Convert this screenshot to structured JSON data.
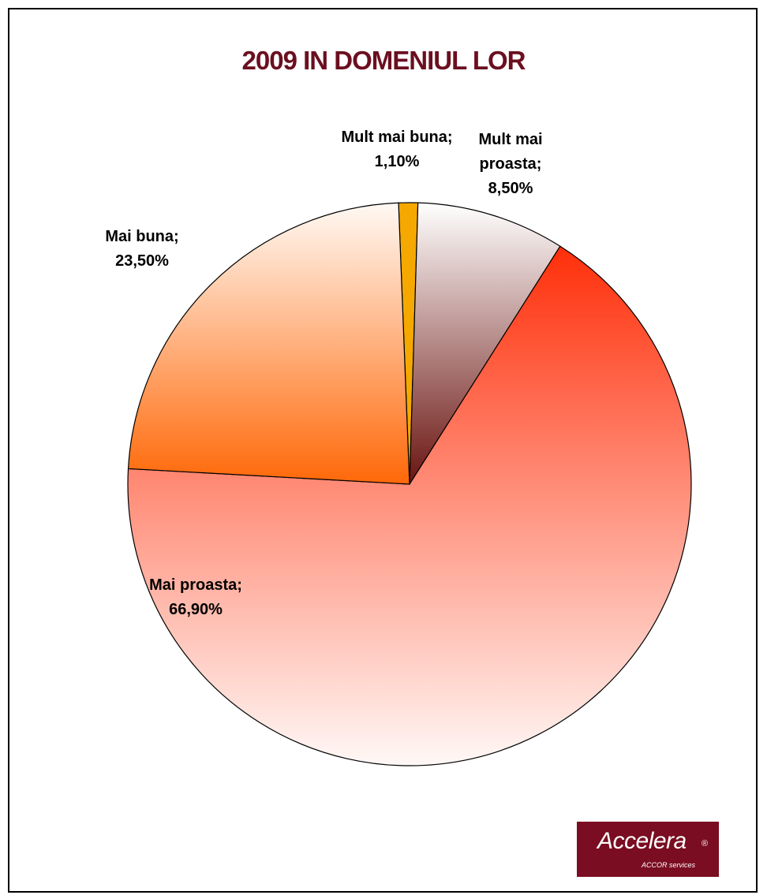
{
  "chart_data": {
    "type": "pie",
    "title": "2009 IN DOMENIUL LOR",
    "slices": [
      {
        "name": "Mult mai buna",
        "label_lines": [
          "Mult mai buna;",
          "1,10%"
        ],
        "value": 1.1,
        "color": "#f5a800"
      },
      {
        "name": "Mult mai proasta",
        "label_lines": [
          "Mult mai",
          "proasta;",
          "8,50%"
        ],
        "value": 8.5,
        "color": "#7a1d12"
      },
      {
        "name": "Mai proasta",
        "label_lines": [
          "Mai proasta;",
          "66,90%"
        ],
        "value": 66.9,
        "color": "#ff3010"
      },
      {
        "name": "Mai buna",
        "label_lines": [
          "Mai buna;",
          "23,50%"
        ],
        "value": 23.5,
        "color": "#ff6a0c"
      }
    ],
    "title_color": "#6b0f1f",
    "legend": "none"
  },
  "logo": {
    "main": "Accelera",
    "reg": "®",
    "sub": "ACCOR services",
    "color": "#7a0d21"
  }
}
